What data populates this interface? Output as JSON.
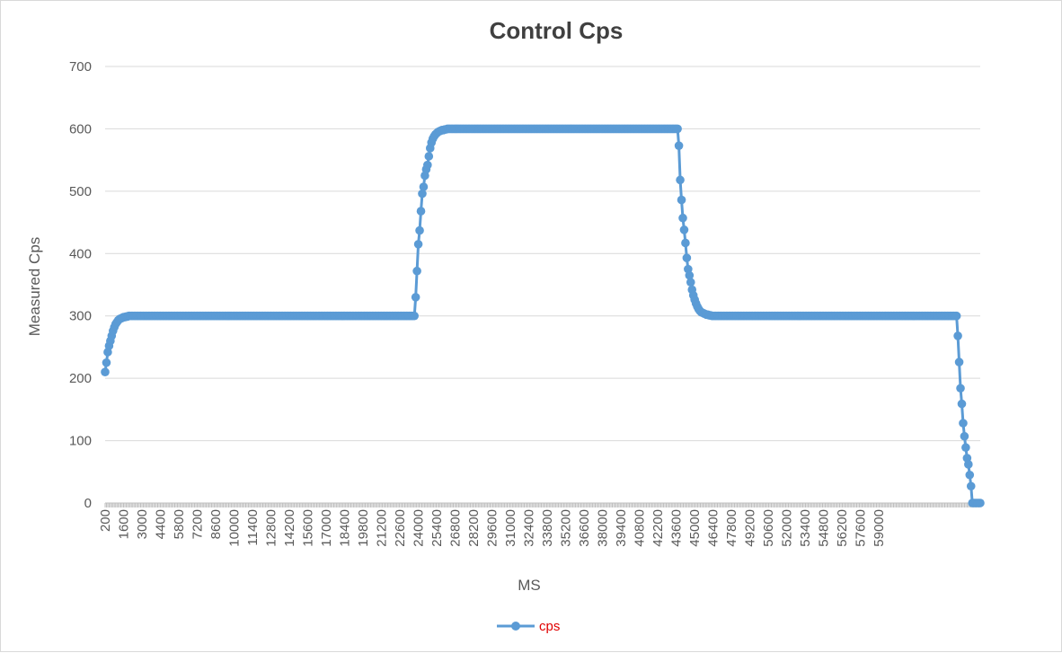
{
  "chart_data": {
    "type": "line",
    "title": "Control Cps",
    "xlabel": "MS",
    "ylabel": "Measured Cps",
    "ylim": [
      0,
      700
    ],
    "yticks": [
      "0",
      "100",
      "200",
      "300",
      "400",
      "500",
      "600",
      "700"
    ],
    "xticks": [
      "200",
      "1600",
      "3000",
      "4400",
      "5800",
      "7200",
      "8600",
      "10000",
      "11400",
      "12800",
      "14200",
      "15600",
      "17000",
      "18400",
      "19800",
      "21200",
      "22600",
      "24000",
      "25400",
      "26800",
      "28200",
      "29600",
      "31000",
      "32400",
      "33800",
      "35200",
      "36600",
      "38000",
      "39400",
      "40800",
      "42200",
      "43600",
      "45000",
      "46400",
      "47800",
      "49200",
      "50600",
      "52000",
      "53400",
      "54800",
      "56200",
      "57600",
      "59000"
    ],
    "grid": true,
    "legend_position": "bottom",
    "color": "#5b9bd5",
    "series": [
      {
        "name": "cps",
        "x_start": 200,
        "x_step": 100,
        "values": [
          210,
          225,
          242,
          252,
          260,
          268,
          276,
          282,
          287,
          290,
          293,
          295,
          296,
          297,
          298,
          298,
          299,
          299,
          300,
          300,
          300,
          300,
          300,
          300,
          300,
          300,
          300,
          300,
          300,
          300,
          300,
          300,
          300,
          300,
          300,
          300,
          300,
          300,
          300,
          300,
          300,
          300,
          300,
          300,
          300,
          300,
          300,
          300,
          300,
          300,
          300,
          300,
          300,
          300,
          300,
          300,
          300,
          300,
          300,
          300,
          300,
          300,
          300,
          300,
          300,
          300,
          300,
          300,
          300,
          300,
          300,
          300,
          300,
          300,
          300,
          300,
          300,
          300,
          300,
          300,
          300,
          300,
          300,
          300,
          300,
          300,
          300,
          300,
          300,
          300,
          300,
          300,
          300,
          300,
          300,
          300,
          300,
          300,
          300,
          300,
          300,
          300,
          300,
          300,
          300,
          300,
          300,
          300,
          300,
          300,
          300,
          300,
          300,
          300,
          300,
          300,
          300,
          300,
          300,
          300,
          300,
          300,
          300,
          300,
          300,
          300,
          300,
          300,
          300,
          300,
          300,
          300,
          300,
          300,
          300,
          300,
          300,
          300,
          300,
          300,
          300,
          300,
          300,
          300,
          300,
          300,
          300,
          300,
          300,
          300,
          300,
          300,
          300,
          300,
          300,
          300,
          300,
          300,
          300,
          300,
          300,
          300,
          300,
          300,
          300,
          300,
          300,
          300,
          300,
          300,
          300,
          300,
          300,
          300,
          300,
          300,
          300,
          300,
          300,
          300,
          300,
          300,
          300,
          300,
          300,
          300,
          300,
          300,
          300,
          300,
          300,
          300,
          300,
          300,
          300,
          300,
          300,
          300,
          300,
          300,
          300,
          300,
          300,
          300,
          300,
          300,
          300,
          300,
          300,
          300,
          300,
          300,
          300,
          300,
          300,
          300,
          300,
          300,
          300,
          300,
          300,
          300,
          300,
          300,
          300,
          300,
          300,
          300,
          300,
          300,
          300,
          300,
          300,
          300,
          300,
          300,
          330,
          372,
          415,
          437,
          468,
          496,
          507,
          525,
          535,
          542,
          556,
          569,
          578,
          584,
          588,
          591,
          593,
          595,
          596,
          597,
          598,
          598,
          599,
          599,
          600,
          600,
          600,
          600,
          600,
          600,
          600,
          600,
          600,
          600,
          600,
          600,
          600,
          600,
          600,
          600,
          600,
          600,
          600,
          600,
          600,
          600,
          600,
          600,
          600,
          600,
          600,
          600,
          600,
          600,
          600,
          600,
          600,
          600,
          600,
          600,
          600,
          600,
          600,
          600,
          600,
          600,
          600,
          600,
          600,
          600,
          600,
          600,
          600,
          600,
          600,
          600,
          600,
          600,
          600,
          600,
          600,
          600,
          600,
          600,
          600,
          600,
          600,
          600,
          600,
          600,
          600,
          600,
          600,
          600,
          600,
          600,
          600,
          600,
          600,
          600,
          600,
          600,
          600,
          600,
          600,
          600,
          600,
          600,
          600,
          600,
          600,
          600,
          600,
          600,
          600,
          600,
          600,
          600,
          600,
          600,
          600,
          600,
          600,
          600,
          600,
          600,
          600,
          600,
          600,
          600,
          600,
          600,
          600,
          600,
          600,
          600,
          600,
          600,
          600,
          600,
          600,
          600,
          600,
          600,
          600,
          600,
          600,
          600,
          600,
          600,
          600,
          600,
          600,
          600,
          600,
          600,
          600,
          600,
          600,
          600,
          600,
          600,
          600,
          600,
          600,
          600,
          600,
          600,
          600,
          600,
          600,
          600,
          600,
          600,
          600,
          600,
          600,
          600,
          600,
          600,
          600,
          600,
          600,
          600,
          600,
          600,
          600,
          600,
          600,
          600,
          600,
          600,
          600,
          600,
          600,
          600,
          600,
          600,
          600,
          600,
          573,
          518,
          486,
          457,
          438,
          417,
          393,
          375,
          365,
          354,
          342,
          333,
          326,
          320,
          315,
          311,
          308,
          306,
          305,
          304,
          303,
          302,
          302,
          301,
          301,
          300,
          300,
          300,
          300,
          300,
          300,
          300,
          300,
          300,
          300,
          300,
          300,
          300,
          300,
          300,
          300,
          300,
          300,
          300,
          300,
          300,
          300,
          300,
          300,
          300,
          300,
          300,
          300,
          300,
          300,
          300,
          300,
          300,
          300,
          300,
          300,
          300,
          300,
          300,
          300,
          300,
          300,
          300,
          300,
          300,
          300,
          300,
          300,
          300,
          300,
          300,
          300,
          300,
          300,
          300,
          300,
          300,
          300,
          300,
          300,
          300,
          300,
          300,
          300,
          300,
          300,
          300,
          300,
          300,
          300,
          300,
          300,
          300,
          300,
          300,
          300,
          300,
          300,
          300,
          300,
          300,
          300,
          300,
          300,
          300,
          300,
          300,
          300,
          300,
          300,
          300,
          300,
          300,
          300,
          300,
          300,
          300,
          300,
          300,
          300,
          300,
          300,
          300,
          300,
          300,
          300,
          300,
          300,
          300,
          300,
          300,
          300,
          300,
          300,
          300,
          300,
          300,
          300,
          300,
          300,
          300,
          300,
          300,
          300,
          300,
          300,
          300,
          300,
          300,
          300,
          300,
          300,
          300,
          300,
          300,
          300,
          300,
          300,
          300,
          300,
          300,
          300,
          300,
          300,
          300,
          300,
          300,
          300,
          300,
          300,
          300,
          300,
          300,
          300,
          300,
          300,
          300,
          300,
          300,
          300,
          300,
          300,
          300,
          300,
          300,
          300,
          300,
          300,
          300,
          300,
          300,
          300,
          300,
          300,
          300,
          300,
          300,
          300,
          300,
          300,
          300,
          300,
          300,
          300,
          300,
          300,
          300,
          268,
          226,
          184,
          159,
          128,
          107,
          89,
          72,
          62,
          45,
          27,
          0,
          0,
          0,
          0,
          0,
          0,
          0
        ]
      }
    ]
  }
}
